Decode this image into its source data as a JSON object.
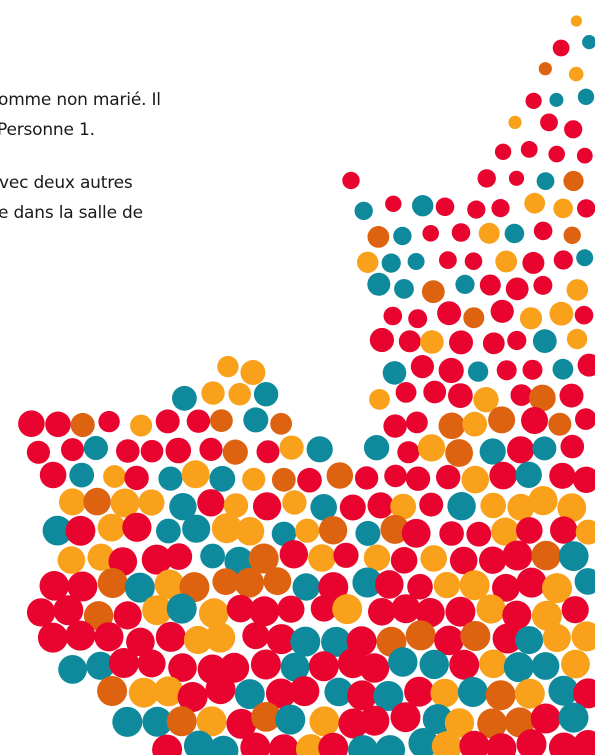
{
  "text_lines": [
    "omme non marié. Il",
    "Personne 1.",
    "vec deux autres",
    "e dans la salle de"
  ]
}
